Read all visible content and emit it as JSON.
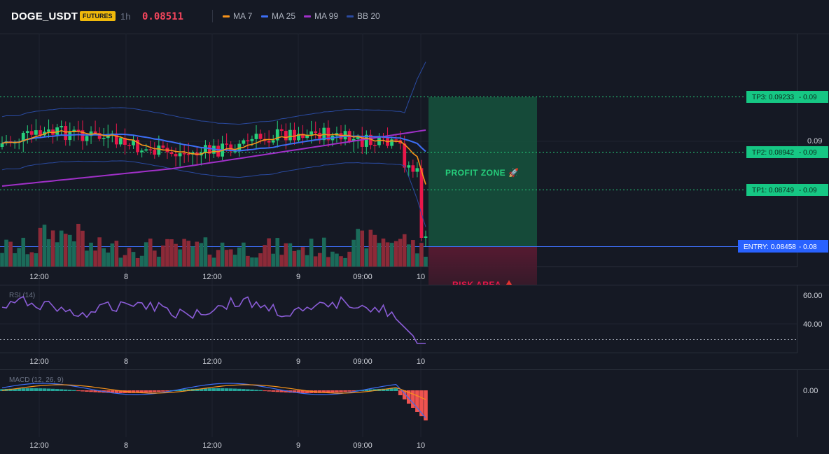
{
  "header": {
    "symbol": "DOGE_USDT",
    "badge": "FUTURES",
    "timeframe": "1h",
    "price": "0.08511",
    "legend": [
      {
        "label": "MA 7",
        "color": "#f7931a"
      },
      {
        "label": "MA 25",
        "color": "#3d6ef5"
      },
      {
        "label": "MA 99",
        "color": "#a030c8"
      },
      {
        "label": "BB 20",
        "color": "#2a4aa0"
      }
    ]
  },
  "colors": {
    "up": "#26d07c",
    "down": "#e8174a",
    "vol_up": "#1b6b5a",
    "vol_down": "#8c2a38"
  },
  "time_axis": [
    "12:00",
    "8",
    "12:00",
    "9",
    "09:00",
    "10"
  ],
  "price_pane": {
    "price_label": "0.09",
    "levels": [
      {
        "key": "tp3",
        "label": "TP3: 0.09233",
        "suffix": "0.09"
      },
      {
        "key": "tp2",
        "label": "TP2: 0.08942",
        "suffix": "0.09"
      },
      {
        "key": "tp1",
        "label": "TP1: 0.08749",
        "suffix": "0.09"
      },
      {
        "key": "entry",
        "label": "ENTRY: 0.08458",
        "suffix": "0.08"
      }
    ],
    "profit_zone": "PROFIT ZONE 🚀",
    "risk_area": "RISK AREA 🩸"
  },
  "rsi": {
    "title": "RSI (14)",
    "ticks": [
      "60.00",
      "40.00"
    ]
  },
  "macd": {
    "title": "MACD (12, 26, 9)",
    "ticks": [
      "0.00"
    ]
  }
}
